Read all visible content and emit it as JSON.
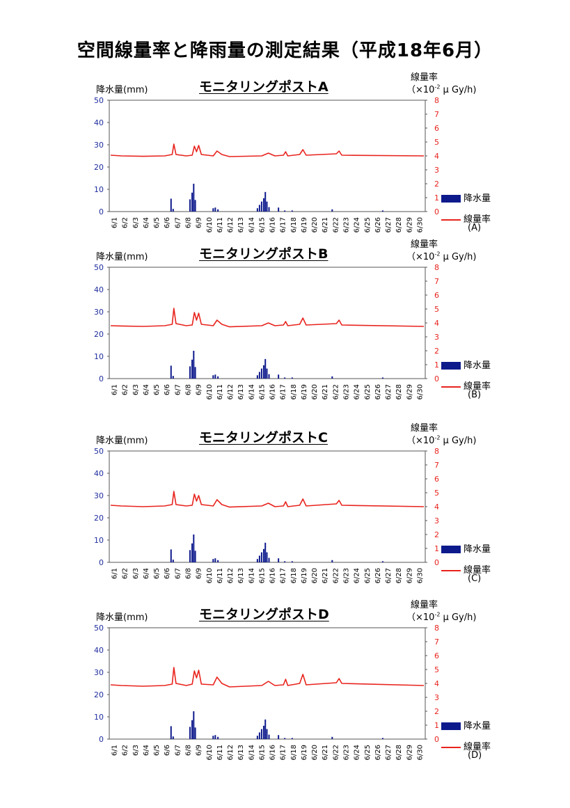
{
  "page_title": "空間線量率と降雨量の測定結果（平成18年6月）",
  "left_axis_label": "降水量(mm)",
  "right_axis_label_1": "線量率",
  "right_axis_label_2_pre": "（×10",
  "right_axis_label_2_sup": "-2",
  "right_axis_label_2_post": " μ Gy/h)",
  "legend_rain": "降水量",
  "legend_dose": "線量率",
  "colors": {
    "rain": "#0d1a8c",
    "dose": "#e8231d",
    "left_ticks": "#1f2d9e"
  },
  "chart_data": [
    {
      "type": "bar+line",
      "title": "モニタリングポストA",
      "legend_sub": "(A)",
      "ylabel_left": "降水量(mm)",
      "ylabel_right": "線量率（×10^-2 μ Gy/h)",
      "y_left_range": [
        0,
        50
      ],
      "y_left_ticks": [
        0,
        10,
        20,
        30,
        40,
        50
      ],
      "y_right_range": [
        0,
        8
      ],
      "y_right_ticks": [
        0,
        1,
        2,
        3,
        4,
        5,
        6,
        7,
        8
      ],
      "x_ticks": [
        "6/1",
        "6/2",
        "6/3",
        "6/4",
        "6/5",
        "6/6",
        "6/7",
        "6/8",
        "6/9",
        "6/10",
        "6/11",
        "6/12",
        "6/13",
        "6/14",
        "6/15",
        "6/16",
        "6/17",
        "6/18",
        "6/19",
        "6/20",
        "6/21",
        "6/22",
        "6/23",
        "6/24",
        "6/25",
        "6/26",
        "6/27",
        "6/28",
        "6/29",
        "6/30"
      ],
      "rain": [
        [
          6.8,
          5.8
        ],
        [
          7.0,
          1.2
        ],
        [
          8.6,
          5.5
        ],
        [
          8.8,
          8.5
        ],
        [
          8.95,
          12.5
        ],
        [
          9.1,
          5.2
        ],
        [
          10.8,
          1.5
        ],
        [
          11.0,
          1.8
        ],
        [
          11.25,
          1.0
        ],
        [
          15.0,
          1.5
        ],
        [
          15.2,
          3.0
        ],
        [
          15.4,
          4.5
        ],
        [
          15.6,
          6.0
        ],
        [
          15.75,
          8.8
        ],
        [
          15.9,
          4.5
        ],
        [
          16.1,
          2.0
        ],
        [
          17.0,
          1.8
        ],
        [
          17.6,
          0.5
        ],
        [
          18.3,
          0.5
        ],
        [
          22.1,
          1.0
        ],
        [
          26.9,
          0.5
        ]
      ],
      "dose": [
        [
          1,
          4.05
        ],
        [
          2,
          4.0
        ],
        [
          4,
          3.97
        ],
        [
          6,
          4.0
        ],
        [
          6.7,
          4.1
        ],
        [
          6.85,
          4.85
        ],
        [
          7.05,
          4.1
        ],
        [
          8.0,
          4.0
        ],
        [
          8.55,
          4.05
        ],
        [
          8.75,
          4.7
        ],
        [
          8.95,
          4.3
        ],
        [
          9.15,
          4.75
        ],
        [
          9.4,
          4.1
        ],
        [
          10.5,
          4.0
        ],
        [
          10.85,
          4.35
        ],
        [
          11.3,
          4.1
        ],
        [
          12,
          3.95
        ],
        [
          15,
          4.0
        ],
        [
          15.6,
          4.2
        ],
        [
          16.2,
          4.0
        ],
        [
          17,
          4.05
        ],
        [
          17.2,
          4.3
        ],
        [
          17.4,
          4.0
        ],
        [
          18.5,
          4.1
        ],
        [
          18.8,
          4.45
        ],
        [
          19.1,
          4.05
        ],
        [
          21.9,
          4.15
        ],
        [
          22.15,
          4.35
        ],
        [
          22.4,
          4.05
        ],
        [
          30,
          4.0
        ]
      ]
    },
    {
      "type": "bar+line",
      "title": "モニタリングポストB",
      "legend_sub": "(B)",
      "ylabel_left": "降水量(mm)",
      "ylabel_right": "線量率（×10^-2 μ Gy/h)",
      "y_left_range": [
        0,
        50
      ],
      "y_left_ticks": [
        0,
        10,
        20,
        30,
        40,
        50
      ],
      "y_right_range": [
        0,
        8
      ],
      "y_right_ticks": [
        0,
        1,
        2,
        3,
        4,
        5,
        6,
        7,
        8
      ],
      "x_ticks": [
        "6/1",
        "6/2",
        "6/3",
        "6/4",
        "6/5",
        "6/6",
        "6/7",
        "6/8",
        "6/9",
        "6/10",
        "6/11",
        "6/12",
        "6/13",
        "6/14",
        "6/15",
        "6/16",
        "6/17",
        "6/18",
        "6/19",
        "6/20",
        "6/21",
        "6/22",
        "6/23",
        "6/24",
        "6/25",
        "6/26",
        "6/27",
        "6/28",
        "6/29",
        "6/30"
      ],
      "rain": [
        [
          6.8,
          5.8
        ],
        [
          7.0,
          1.2
        ],
        [
          8.6,
          5.5
        ],
        [
          8.8,
          8.5
        ],
        [
          8.95,
          12.5
        ],
        [
          9.1,
          5.2
        ],
        [
          10.8,
          1.5
        ],
        [
          11.0,
          1.8
        ],
        [
          11.25,
          1.0
        ],
        [
          15.0,
          1.5
        ],
        [
          15.2,
          3.0
        ],
        [
          15.4,
          4.5
        ],
        [
          15.6,
          6.0
        ],
        [
          15.75,
          8.8
        ],
        [
          15.9,
          4.5
        ],
        [
          16.1,
          2.0
        ],
        [
          17.0,
          1.8
        ],
        [
          17.6,
          0.5
        ],
        [
          18.3,
          0.5
        ],
        [
          22.1,
          1.0
        ],
        [
          26.9,
          0.5
        ]
      ],
      "dose": [
        [
          1,
          3.8
        ],
        [
          2,
          3.78
        ],
        [
          4,
          3.75
        ],
        [
          6,
          3.8
        ],
        [
          6.7,
          3.9
        ],
        [
          6.85,
          5.05
        ],
        [
          7.05,
          3.95
        ],
        [
          8.0,
          3.8
        ],
        [
          8.55,
          3.85
        ],
        [
          8.75,
          4.75
        ],
        [
          8.95,
          4.2
        ],
        [
          9.15,
          4.7
        ],
        [
          9.4,
          3.9
        ],
        [
          10.5,
          3.8
        ],
        [
          10.85,
          4.2
        ],
        [
          11.3,
          3.9
        ],
        [
          12,
          3.72
        ],
        [
          15,
          3.8
        ],
        [
          15.6,
          4.0
        ],
        [
          16.2,
          3.8
        ],
        [
          17,
          3.85
        ],
        [
          17.2,
          4.1
        ],
        [
          17.4,
          3.8
        ],
        [
          18.5,
          3.9
        ],
        [
          18.8,
          4.35
        ],
        [
          19.1,
          3.85
        ],
        [
          21.9,
          3.95
        ],
        [
          22.15,
          4.2
        ],
        [
          22.4,
          3.85
        ],
        [
          30,
          3.75
        ]
      ]
    },
    {
      "type": "bar+line",
      "title": "モニタリングポストC",
      "legend_sub": "(C)",
      "ylabel_left": "降水量(mm)",
      "ylabel_right": "線量率（×10^-2 μ Gy/h)",
      "y_left_range": [
        0,
        50
      ],
      "y_left_ticks": [
        0,
        10,
        20,
        30,
        40,
        50
      ],
      "y_right_range": [
        0,
        8
      ],
      "y_right_ticks": [
        0,
        1,
        2,
        3,
        4,
        5,
        6,
        7,
        8
      ],
      "x_ticks": [
        "6/1",
        "6/2",
        "6/3",
        "6/4",
        "6/5",
        "6/6",
        "6/7",
        "6/8",
        "6/9",
        "6/10",
        "6/11",
        "6/12",
        "6/13",
        "6/14",
        "6/15",
        "6/16",
        "6/17",
        "6/18",
        "6/19",
        "6/20",
        "6/21",
        "6/22",
        "6/23",
        "6/24",
        "6/25",
        "6/26",
        "6/27",
        "6/28",
        "6/29",
        "6/30"
      ],
      "rain": [
        [
          6.8,
          5.8
        ],
        [
          7.0,
          1.2
        ],
        [
          8.6,
          5.5
        ],
        [
          8.8,
          8.5
        ],
        [
          8.95,
          12.5
        ],
        [
          9.1,
          5.2
        ],
        [
          10.8,
          1.5
        ],
        [
          11.0,
          1.8
        ],
        [
          11.25,
          1.0
        ],
        [
          15.0,
          1.5
        ],
        [
          15.2,
          3.0
        ],
        [
          15.4,
          4.5
        ],
        [
          15.6,
          6.0
        ],
        [
          15.75,
          8.8
        ],
        [
          15.9,
          4.5
        ],
        [
          16.1,
          2.0
        ],
        [
          17.0,
          1.8
        ],
        [
          17.6,
          0.5
        ],
        [
          18.3,
          0.5
        ],
        [
          22.1,
          1.0
        ],
        [
          26.9,
          0.5
        ]
      ],
      "dose": [
        [
          1,
          4.1
        ],
        [
          2,
          4.05
        ],
        [
          4,
          4.0
        ],
        [
          6,
          4.05
        ],
        [
          6.7,
          4.15
        ],
        [
          6.85,
          5.1
        ],
        [
          7.05,
          4.15
        ],
        [
          8.0,
          4.05
        ],
        [
          8.55,
          4.1
        ],
        [
          8.75,
          4.9
        ],
        [
          8.95,
          4.4
        ],
        [
          9.15,
          4.8
        ],
        [
          9.4,
          4.15
        ],
        [
          10.5,
          4.05
        ],
        [
          10.85,
          4.5
        ],
        [
          11.3,
          4.15
        ],
        [
          12,
          3.97
        ],
        [
          15,
          4.05
        ],
        [
          15.6,
          4.25
        ],
        [
          16.2,
          4.0
        ],
        [
          17,
          4.05
        ],
        [
          17.2,
          4.35
        ],
        [
          17.4,
          4.0
        ],
        [
          18.5,
          4.1
        ],
        [
          18.8,
          4.55
        ],
        [
          19.1,
          4.05
        ],
        [
          21.9,
          4.2
        ],
        [
          22.15,
          4.45
        ],
        [
          22.4,
          4.1
        ],
        [
          30,
          4.0
        ]
      ]
    },
    {
      "type": "bar+line",
      "title": "モニタリングポストD",
      "legend_sub": "(D)",
      "ylabel_left": "降水量(mm)",
      "ylabel_right": "線量率（×10^-2 μ Gy/h)",
      "y_left_range": [
        0,
        50
      ],
      "y_left_ticks": [
        0,
        10,
        20,
        30,
        40,
        50
      ],
      "y_right_range": [
        0,
        8
      ],
      "y_right_ticks": [
        0,
        1,
        2,
        3,
        4,
        5,
        6,
        7,
        8
      ],
      "x_ticks": [
        "6/1",
        "6/2",
        "6/3",
        "6/4",
        "6/5",
        "6/6",
        "6/7",
        "6/8",
        "6/9",
        "6/10",
        "6/11",
        "6/12",
        "6/13",
        "6/14",
        "6/15",
        "6/16",
        "6/17",
        "6/18",
        "6/19",
        "6/20",
        "6/21",
        "6/22",
        "6/23",
        "6/24",
        "6/25",
        "6/26",
        "6/27",
        "6/28",
        "6/29",
        "6/30"
      ],
      "rain": [
        [
          6.8,
          5.8
        ],
        [
          7.0,
          1.2
        ],
        [
          8.6,
          5.5
        ],
        [
          8.8,
          8.5
        ],
        [
          8.95,
          12.5
        ],
        [
          9.1,
          5.2
        ],
        [
          10.8,
          1.5
        ],
        [
          11.0,
          1.8
        ],
        [
          11.25,
          1.0
        ],
        [
          15.0,
          1.5
        ],
        [
          15.2,
          3.0
        ],
        [
          15.4,
          4.5
        ],
        [
          15.6,
          6.0
        ],
        [
          15.75,
          8.8
        ],
        [
          15.9,
          4.5
        ],
        [
          16.1,
          2.0
        ],
        [
          17.0,
          1.8
        ],
        [
          17.6,
          0.5
        ],
        [
          18.3,
          0.5
        ],
        [
          22.1,
          1.0
        ],
        [
          26.9,
          0.5
        ]
      ],
      "dose": [
        [
          1,
          3.9
        ],
        [
          2,
          3.85
        ],
        [
          4,
          3.8
        ],
        [
          6,
          3.85
        ],
        [
          6.7,
          3.95
        ],
        [
          6.85,
          5.15
        ],
        [
          7.05,
          4.0
        ],
        [
          8.0,
          3.85
        ],
        [
          8.55,
          3.95
        ],
        [
          8.75,
          4.9
        ],
        [
          8.95,
          4.4
        ],
        [
          9.15,
          4.95
        ],
        [
          9.4,
          3.95
        ],
        [
          10.5,
          3.9
        ],
        [
          10.85,
          4.45
        ],
        [
          11.3,
          4.0
        ],
        [
          12,
          3.75
        ],
        [
          15,
          3.85
        ],
        [
          15.6,
          4.15
        ],
        [
          16.2,
          3.85
        ],
        [
          17,
          3.9
        ],
        [
          17.2,
          4.3
        ],
        [
          17.4,
          3.85
        ],
        [
          18.5,
          4.0
        ],
        [
          18.8,
          4.65
        ],
        [
          19.1,
          3.9
        ],
        [
          21.9,
          4.05
        ],
        [
          22.15,
          4.35
        ],
        [
          22.4,
          4.0
        ],
        [
          30,
          3.85
        ]
      ]
    }
  ]
}
